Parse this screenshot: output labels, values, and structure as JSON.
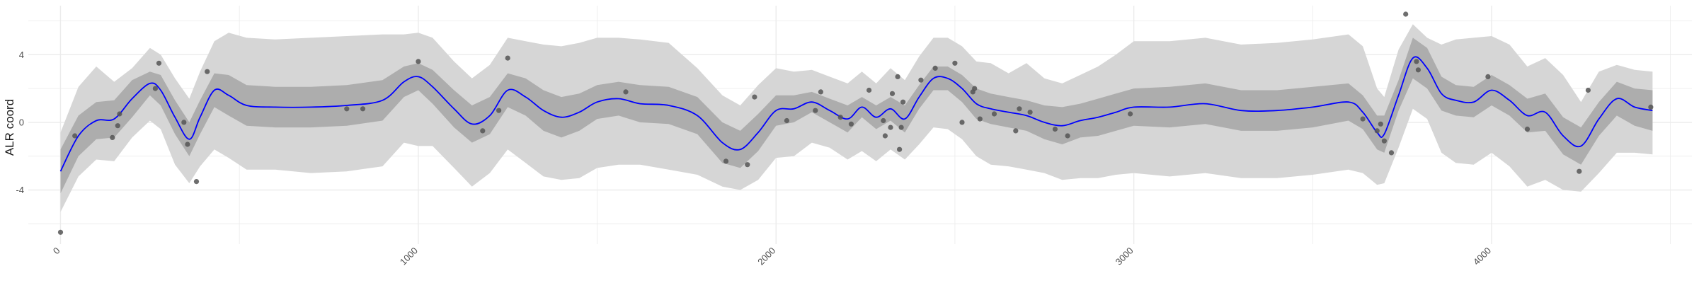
{
  "chart_data": {
    "type": "line",
    "title": "",
    "xlabel": "",
    "ylabel": "ALR coord",
    "xlim": [
      -90,
      4560
    ],
    "ylim": [
      -7.2,
      6.9
    ],
    "x_ticks": [
      {
        "value": 0,
        "label": "0"
      },
      {
        "value": 1000,
        "label": "1000"
      },
      {
        "value": 2000,
        "label": "2000"
      },
      {
        "value": 3000,
        "label": "3000"
      },
      {
        "value": 4000,
        "label": "4000"
      }
    ],
    "y_ticks": [
      {
        "value": -4,
        "label": "-4"
      },
      {
        "value": 0,
        "label": "0"
      },
      {
        "value": 4,
        "label": "4"
      }
    ],
    "grid": true,
    "colors": {
      "mean_line": "#0000ff",
      "inner_band": "#adadad",
      "outer_band": "#d6d6d6",
      "points": "#555555",
      "grid": "#ebebeb"
    },
    "mean": {
      "x": [
        0,
        50,
        100,
        150,
        200,
        250,
        280,
        320,
        360,
        390,
        430,
        470,
        520,
        600,
        700,
        800,
        900,
        960,
        1000,
        1040,
        1100,
        1150,
        1200,
        1250,
        1300,
        1350,
        1400,
        1450,
        1500,
        1560,
        1620,
        1700,
        1780,
        1850,
        1900,
        1950,
        2000,
        2050,
        2100,
        2150,
        2200,
        2240,
        2280,
        2320,
        2360,
        2400,
        2440,
        2480,
        2520,
        2560,
        2600,
        2650,
        2700,
        2750,
        2800,
        2850,
        2900,
        2950,
        3000,
        3100,
        3200,
        3300,
        3400,
        3500,
        3600,
        3640,
        3680,
        3700,
        3740,
        3780,
        3820,
        3860,
        3900,
        3950,
        4000,
        4050,
        4100,
        4150,
        4200,
        4250,
        4300,
        4350,
        4400,
        4450
      ],
      "y": [
        -2.9,
        -0.8,
        0.1,
        0.2,
        1.4,
        2.3,
        1.9,
        0.3,
        -1.0,
        0.3,
        1.9,
        1.6,
        1.0,
        0.9,
        0.9,
        1.0,
        1.3,
        2.4,
        2.7,
        2.1,
        0.8,
        -0.1,
        0.4,
        1.9,
        1.5,
        0.7,
        0.3,
        0.6,
        1.2,
        1.4,
        1.1,
        1.0,
        0.4,
        -1.2,
        -1.6,
        -0.6,
        0.7,
        0.8,
        1.2,
        0.7,
        0.2,
        0.9,
        0.3,
        0.8,
        0.2,
        1.5,
        2.6,
        2.6,
        2.0,
        1.1,
        0.8,
        0.6,
        0.4,
        0.0,
        -0.2,
        0.1,
        0.3,
        0.6,
        0.9,
        0.9,
        1.1,
        0.7,
        0.7,
        0.9,
        1.2,
        0.6,
        -0.6,
        -0.7,
        1.6,
        3.8,
        3.2,
        1.7,
        1.3,
        1.2,
        1.9,
        1.3,
        0.4,
        0.6,
        -0.8,
        -1.4,
        0.2,
        1.4,
        0.9,
        0.7
      ]
    },
    "inner_band": {
      "x": [
        0,
        50,
        100,
        150,
        200,
        250,
        280,
        320,
        360,
        390,
        430,
        470,
        520,
        600,
        700,
        800,
        900,
        960,
        1000,
        1040,
        1100,
        1150,
        1200,
        1250,
        1300,
        1350,
        1400,
        1450,
        1500,
        1560,
        1620,
        1700,
        1780,
        1850,
        1900,
        1950,
        2000,
        2050,
        2100,
        2150,
        2200,
        2240,
        2280,
        2320,
        2360,
        2400,
        2440,
        2480,
        2520,
        2560,
        2600,
        2650,
        2700,
        2750,
        2800,
        2850,
        2900,
        2950,
        3000,
        3100,
        3200,
        3300,
        3400,
        3500,
        3600,
        3640,
        3680,
        3700,
        3740,
        3780,
        3820,
        3860,
        3900,
        3950,
        4000,
        4050,
        4100,
        4150,
        4200,
        4250,
        4300,
        4350,
        4400,
        4450
      ],
      "upper": [
        -1.6,
        0.4,
        1.2,
        1.3,
        2.5,
        3.0,
        2.8,
        1.3,
        0.0,
        1.3,
        2.9,
        2.8,
        2.2,
        2.1,
        2.1,
        2.2,
        2.5,
        3.3,
        3.5,
        3.1,
        1.9,
        1.0,
        1.5,
        2.9,
        2.6,
        1.9,
        1.5,
        1.7,
        2.2,
        2.4,
        2.2,
        2.1,
        1.5,
        0.0,
        -0.5,
        0.5,
        1.6,
        1.6,
        1.8,
        1.4,
        1.0,
        1.5,
        1.0,
        1.5,
        1.0,
        2.2,
        3.3,
        3.3,
        2.8,
        2.0,
        1.7,
        1.5,
        1.3,
        1.0,
        0.9,
        1.1,
        1.4,
        1.7,
        2.0,
        2.1,
        2.3,
        1.9,
        1.9,
        2.1,
        2.3,
        1.6,
        0.4,
        0.4,
        2.5,
        5.0,
        4.4,
        2.7,
        2.2,
        2.1,
        2.8,
        2.2,
        1.4,
        1.7,
        0.3,
        -0.3,
        1.2,
        2.4,
        2.0,
        1.9
      ],
      "lower": [
        -4.2,
        -2.0,
        -1.0,
        -0.9,
        0.3,
        1.6,
        1.0,
        -0.7,
        -2.0,
        -0.7,
        0.9,
        0.4,
        -0.2,
        -0.3,
        -0.3,
        -0.2,
        0.1,
        1.5,
        1.9,
        1.1,
        -0.3,
        -1.2,
        -0.7,
        0.9,
        0.4,
        -0.5,
        -0.9,
        -0.5,
        0.2,
        0.4,
        0.0,
        -0.1,
        -0.7,
        -2.4,
        -2.7,
        -1.7,
        -0.2,
        0.0,
        0.6,
        0.0,
        -0.6,
        0.3,
        -0.4,
        0.1,
        -0.6,
        0.8,
        1.9,
        1.9,
        1.2,
        0.2,
        -0.1,
        -0.3,
        -0.5,
        -1.0,
        -1.3,
        -0.9,
        -0.8,
        -0.5,
        -0.2,
        -0.3,
        -0.1,
        -0.5,
        -0.5,
        -0.3,
        0.1,
        -0.4,
        -1.6,
        -1.8,
        0.7,
        2.6,
        2.0,
        0.7,
        0.4,
        0.3,
        1.0,
        0.4,
        -0.6,
        -0.5,
        -1.9,
        -2.5,
        -0.8,
        0.4,
        -0.2,
        -0.5
      ]
    },
    "outer_band": {
      "x": [
        0,
        50,
        100,
        150,
        200,
        250,
        280,
        320,
        360,
        390,
        430,
        470,
        520,
        600,
        700,
        800,
        900,
        960,
        1000,
        1040,
        1100,
        1150,
        1200,
        1250,
        1300,
        1350,
        1400,
        1450,
        1500,
        1560,
        1620,
        1700,
        1780,
        1850,
        1900,
        1950,
        2000,
        2050,
        2100,
        2150,
        2200,
        2240,
        2280,
        2320,
        2360,
        2400,
        2440,
        2480,
        2520,
        2560,
        2600,
        2650,
        2700,
        2750,
        2800,
        2850,
        2900,
        2950,
        3000,
        3100,
        3200,
        3300,
        3400,
        3500,
        3600,
        3640,
        3680,
        3700,
        3740,
        3780,
        3820,
        3860,
        3900,
        3950,
        4000,
        4050,
        4100,
        4150,
        4200,
        4250,
        4300,
        4350,
        4400,
        4450
      ],
      "upper": [
        -0.6,
        2.1,
        3.3,
        2.4,
        3.2,
        4.4,
        4.0,
        2.6,
        1.4,
        3.0,
        4.8,
        5.3,
        5.0,
        4.9,
        5.0,
        5.1,
        5.2,
        5.2,
        5.3,
        5.0,
        3.6,
        2.6,
        3.4,
        5.0,
        4.8,
        4.6,
        4.5,
        4.7,
        5.0,
        5.0,
        4.9,
        4.7,
        3.2,
        1.6,
        1.0,
        2.2,
        3.2,
        3.0,
        3.1,
        2.7,
        2.3,
        3.0,
        2.3,
        3.2,
        2.5,
        3.9,
        5.0,
        5.0,
        4.5,
        3.6,
        3.5,
        2.9,
        3.5,
        2.6,
        2.3,
        2.8,
        3.3,
        4.0,
        4.8,
        4.8,
        5.0,
        4.6,
        4.7,
        4.9,
        5.2,
        4.5,
        2.0,
        1.5,
        4.3,
        5.8,
        5.0,
        4.6,
        4.9,
        5.0,
        5.1,
        4.6,
        3.3,
        3.8,
        2.8,
        1.2,
        3.0,
        3.4,
        3.1,
        3.0
      ],
      "lower": [
        -5.3,
        -3.2,
        -2.2,
        -2.3,
        -0.9,
        0.1,
        -0.4,
        -2.5,
        -3.6,
        -2.6,
        -1.6,
        -2.1,
        -2.8,
        -2.8,
        -3.0,
        -2.9,
        -2.6,
        -1.2,
        -1.4,
        -1.4,
        -2.7,
        -3.8,
        -3.0,
        -1.6,
        -2.4,
        -3.2,
        -3.4,
        -3.3,
        -2.7,
        -2.5,
        -2.5,
        -2.8,
        -3.1,
        -3.8,
        -4.0,
        -3.4,
        -2.1,
        -2.0,
        -1.2,
        -1.5,
        -2.2,
        -1.7,
        -2.3,
        -1.6,
        -2.2,
        -1.3,
        -0.3,
        -0.4,
        -1.0,
        -2.0,
        -2.5,
        -2.6,
        -2.8,
        -3.0,
        -3.4,
        -3.3,
        -3.3,
        -3.1,
        -3.0,
        -3.2,
        -3.0,
        -3.3,
        -3.3,
        -3.1,
        -2.8,
        -3.0,
        -3.7,
        -3.6,
        -1.5,
        0.8,
        0.2,
        -1.8,
        -2.4,
        -2.5,
        -1.8,
        -2.6,
        -3.8,
        -3.4,
        -4.0,
        -4.1,
        -3.0,
        -1.8,
        -1.8,
        -1.9
      ]
    },
    "points": [
      {
        "x": 0,
        "y": -6.5
      },
      {
        "x": 40,
        "y": -0.8
      },
      {
        "x": 145,
        "y": -0.9
      },
      {
        "x": 160,
        "y": -0.2
      },
      {
        "x": 165,
        "y": 0.5
      },
      {
        "x": 265,
        "y": 2.0
      },
      {
        "x": 275,
        "y": 3.5
      },
      {
        "x": 345,
        "y": 0.0
      },
      {
        "x": 355,
        "y": -1.3
      },
      {
        "x": 380,
        "y": -3.5
      },
      {
        "x": 410,
        "y": 3.0
      },
      {
        "x": 800,
        "y": 0.8
      },
      {
        "x": 845,
        "y": 0.8
      },
      {
        "x": 1000,
        "y": 3.6
      },
      {
        "x": 1180,
        "y": -0.5
      },
      {
        "x": 1225,
        "y": 0.7
      },
      {
        "x": 1250,
        "y": 3.8
      },
      {
        "x": 1580,
        "y": 1.8
      },
      {
        "x": 1860,
        "y": -2.3
      },
      {
        "x": 1920,
        "y": -2.5
      },
      {
        "x": 1940,
        "y": 1.5
      },
      {
        "x": 2030,
        "y": 0.1
      },
      {
        "x": 2110,
        "y": 0.7
      },
      {
        "x": 2125,
        "y": 1.8
      },
      {
        "x": 2180,
        "y": 0.3
      },
      {
        "x": 2210,
        "y": -0.1
      },
      {
        "x": 2260,
        "y": 1.9
      },
      {
        "x": 2300,
        "y": 0.1
      },
      {
        "x": 2305,
        "y": -0.8
      },
      {
        "x": 2320,
        "y": -0.3
      },
      {
        "x": 2325,
        "y": 1.7
      },
      {
        "x": 2340,
        "y": 2.7
      },
      {
        "x": 2345,
        "y": -1.6
      },
      {
        "x": 2350,
        "y": -0.3
      },
      {
        "x": 2355,
        "y": 1.2
      },
      {
        "x": 2405,
        "y": 2.5
      },
      {
        "x": 2445,
        "y": 3.2
      },
      {
        "x": 2500,
        "y": 3.5
      },
      {
        "x": 2520,
        "y": 0.0
      },
      {
        "x": 2550,
        "y": 1.8
      },
      {
        "x": 2555,
        "y": 2.0
      },
      {
        "x": 2570,
        "y": 0.2
      },
      {
        "x": 2610,
        "y": 0.5
      },
      {
        "x": 2670,
        "y": -0.5
      },
      {
        "x": 2680,
        "y": 0.8
      },
      {
        "x": 2710,
        "y": 0.6
      },
      {
        "x": 2780,
        "y": -0.4
      },
      {
        "x": 2815,
        "y": -0.8
      },
      {
        "x": 2990,
        "y": 0.5
      },
      {
        "x": 3640,
        "y": 0.2
      },
      {
        "x": 3680,
        "y": -0.5
      },
      {
        "x": 3690,
        "y": -0.1
      },
      {
        "x": 3700,
        "y": -1.1
      },
      {
        "x": 3720,
        "y": -1.8
      },
      {
        "x": 3760,
        "y": 6.4
      },
      {
        "x": 3790,
        "y": 3.6
      },
      {
        "x": 3795,
        "y": 3.1
      },
      {
        "x": 3990,
        "y": 2.7
      },
      {
        "x": 4100,
        "y": -0.4
      },
      {
        "x": 4245,
        "y": -2.9
      },
      {
        "x": 4270,
        "y": 1.9
      },
      {
        "x": 4445,
        "y": 0.9
      }
    ]
  }
}
